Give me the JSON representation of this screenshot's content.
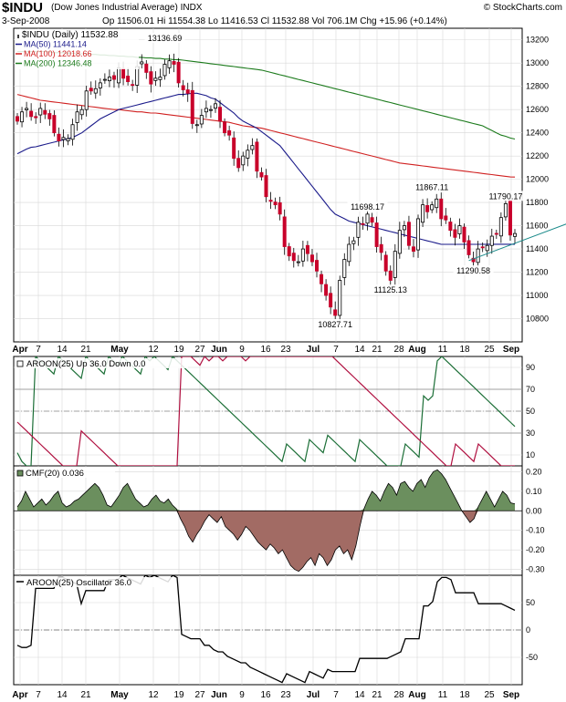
{
  "header": {
    "symbol": "$INDU",
    "name": "(Dow Jones Industrial Average)",
    "exchange": "INDX",
    "source": "© StockCharts.com",
    "date": "3-Sep-2008",
    "quote": "Op 11506.01  Hi 11554.38  Lo 11416.53  Cl 11532.88  Vol 706.1M  Chg +15.96 (+0.14%)"
  },
  "chart_data": [
    {
      "type": "candlestick",
      "legend": [
        {
          "label": "$INDU (Daily) 11532.88",
          "color": "#000000"
        },
        {
          "label": "MA(50) 11441.14",
          "color": "#1a1a8a"
        },
        {
          "label": "MA(100) 12018.66",
          "color": "#d02020"
        },
        {
          "label": "MA(200) 12346.48",
          "color": "#1b7a1b"
        }
      ],
      "x_tick_labels": [
        "Apr",
        "7",
        "14",
        "21",
        "May",
        "12",
        "19",
        "27",
        "Jun",
        "9",
        "16",
        "23",
        "Jul",
        "7",
        "14",
        "21",
        "28",
        "Aug",
        "11",
        "18",
        "25",
        "Sep"
      ],
      "y_tick_labels": [
        "10800",
        "11000",
        "11200",
        "11400",
        "11600",
        "11800",
        "12000",
        "12200",
        "12400",
        "12600",
        "12800",
        "13000",
        "13200"
      ],
      "ylim": [
        10600,
        13300
      ],
      "closes": [
        12500,
        12580,
        12610,
        12540,
        12530,
        12610,
        12560,
        12520,
        12400,
        12330,
        12360,
        12350,
        12470,
        12580,
        12600,
        12760,
        12760,
        12780,
        12830,
        12860,
        12880,
        12860,
        12960,
        12870,
        12840,
        12810,
        12970,
        13010,
        12920,
        12820,
        12870,
        12880,
        12990,
        13020,
        12990,
        12830,
        12770,
        12740,
        12480,
        12470,
        12550,
        12610,
        12600,
        12650,
        12500,
        12400,
        12380,
        12180,
        12100,
        12200,
        12250,
        12290,
        12070,
        12020,
        11850,
        11810,
        11780,
        11700,
        11420,
        11340,
        11300,
        11290,
        11400,
        11360,
        11290,
        11210,
        11100,
        11000,
        10900,
        10828,
        11130,
        11310,
        11440,
        11470,
        11630,
        11610,
        11700,
        11630,
        11420,
        11370,
        11210,
        11130,
        11380,
        11560,
        11600,
        11430,
        11380,
        11660,
        11780,
        11720,
        11780,
        11830,
        11660,
        11650,
        11560,
        11500,
        11600,
        11460,
        11350,
        11290,
        11400,
        11410,
        11430,
        11510,
        11530,
        11670,
        11790,
        11520,
        11533
      ],
      "ma50": [
        12220,
        12240,
        12260,
        12275,
        12280,
        12290,
        12300,
        12310,
        12320,
        12330,
        12340,
        12350,
        12360,
        12380,
        12400,
        12430,
        12460,
        12490,
        12520,
        12540,
        12560,
        12580,
        12600,
        12610,
        12620,
        12630,
        12640,
        12650,
        12660,
        12670,
        12680,
        12690,
        12700,
        12710,
        12720,
        12730,
        12730,
        12735,
        12740,
        12740,
        12730,
        12720,
        12700,
        12690,
        12660,
        12630,
        12600,
        12570,
        12530,
        12500,
        12480,
        12460,
        12440,
        12410,
        12380,
        12350,
        12320,
        12290,
        12240,
        12190,
        12140,
        12090,
        12040,
        11990,
        11940,
        11890,
        11840,
        11790,
        11740,
        11700,
        11680,
        11660,
        11640,
        11630,
        11620,
        11610,
        11600,
        11590,
        11580,
        11570,
        11560,
        11550,
        11540,
        11530,
        11520,
        11510,
        11500,
        11490,
        11480,
        11470,
        11460,
        11450,
        11440,
        11440,
        11440,
        11440,
        11440,
        11440,
        11440,
        11440,
        11440,
        11440,
        11441,
        11441,
        11441,
        11441,
        11441,
        11441,
        11441
      ],
      "ma100": [
        12730,
        12720,
        12710,
        12700,
        12690,
        12680,
        12675,
        12670,
        12665,
        12660,
        12655,
        12650,
        12645,
        12640,
        12635,
        12630,
        12625,
        12620,
        12615,
        12610,
        12605,
        12600,
        12600,
        12595,
        12590,
        12585,
        12580,
        12580,
        12575,
        12570,
        12570,
        12565,
        12560,
        12555,
        12550,
        12545,
        12540,
        12535,
        12530,
        12525,
        12520,
        12515,
        12510,
        12505,
        12500,
        12495,
        12490,
        12480,
        12470,
        12460,
        12455,
        12450,
        12445,
        12440,
        12430,
        12420,
        12410,
        12400,
        12390,
        12380,
        12370,
        12360,
        12350,
        12340,
        12330,
        12320,
        12310,
        12300,
        12290,
        12280,
        12270,
        12260,
        12250,
        12240,
        12230,
        12220,
        12210,
        12200,
        12190,
        12180,
        12170,
        12160,
        12150,
        12140,
        12135,
        12130,
        12125,
        12120,
        12115,
        12110,
        12105,
        12100,
        12095,
        12090,
        12085,
        12080,
        12075,
        12070,
        12065,
        12060,
        12055,
        12050,
        12045,
        12040,
        12035,
        12030,
        12025,
        12020,
        12019
      ],
      "ma200": [
        13100,
        13100,
        13100,
        13100,
        13100,
        13100,
        13100,
        13095,
        13090,
        13090,
        13090,
        13085,
        13085,
        13080,
        13080,
        13080,
        13075,
        13075,
        13070,
        13070,
        13065,
        13065,
        13060,
        13060,
        13055,
        13055,
        13050,
        13050,
        13045,
        13045,
        13040,
        13040,
        13035,
        13035,
        13030,
        13030,
        13025,
        13020,
        13015,
        13010,
        13005,
        13000,
        12995,
        12990,
        12985,
        12980,
        12975,
        12970,
        12965,
        12960,
        12955,
        12950,
        12945,
        12940,
        12930,
        12920,
        12910,
        12900,
        12890,
        12880,
        12870,
        12860,
        12850,
        12840,
        12830,
        12820,
        12810,
        12800,
        12790,
        12780,
        12770,
        12760,
        12750,
        12740,
        12730,
        12720,
        12710,
        12700,
        12690,
        12680,
        12670,
        12660,
        12650,
        12640,
        12630,
        12620,
        12610,
        12600,
        12590,
        12580,
        12570,
        12560,
        12550,
        12540,
        12530,
        12520,
        12510,
        12500,
        12490,
        12480,
        12470,
        12460,
        12440,
        12420,
        12400,
        12380,
        12370,
        12355,
        12346
      ],
      "annotations": [
        {
          "label": "13136.69",
          "x": 32,
          "y": 13150
        },
        {
          "label": "10827.71",
          "x": 69,
          "y": 10828
        },
        {
          "label": "11125.13",
          "x": 81,
          "y": 11125
        },
        {
          "label": "11698.17",
          "x": 76,
          "y": 11698
        },
        {
          "label": "11867.11",
          "x": 90,
          "y": 11867
        },
        {
          "label": "11290.58",
          "x": 99,
          "y": 11290
        },
        {
          "label": "11790.17",
          "x": 106,
          "y": 11790
        }
      ],
      "trendline": {
        "from": {
          "x": 98,
          "y": 11300
        },
        "to": {
          "x": 115,
          "y": 11690
        }
      }
    },
    {
      "type": "line",
      "title": "AROON(25) Up 36.0 Down 0.0",
      "y_tick_labels": [
        "10",
        "30",
        "50",
        "70",
        "90"
      ],
      "ylim": [
        0,
        100
      ],
      "reference_lines": [
        30,
        50,
        70
      ],
      "series": [
        {
          "name": "Up",
          "color": "#1b6e36",
          "values": [
            12,
            4,
            0,
            0,
            100,
            96,
            92,
            88,
            84,
            100,
            96,
            92,
            88,
            84,
            80,
            100,
            96,
            92,
            88,
            84,
            100,
            96,
            92,
            100,
            96,
            92,
            88,
            84,
            100,
            96,
            100,
            96,
            92,
            88,
            100,
            96,
            92,
            88,
            84,
            80,
            76,
            72,
            68,
            64,
            60,
            56,
            52,
            48,
            44,
            40,
            36,
            32,
            28,
            24,
            20,
            16,
            12,
            8,
            4,
            20,
            16,
            12,
            8,
            4,
            24,
            20,
            16,
            12,
            28,
            24,
            20,
            16,
            12,
            8,
            4,
            24,
            20,
            16,
            12,
            8,
            4,
            0,
            0,
            0,
            0,
            20,
            16,
            12,
            8,
            64,
            60,
            64,
            96,
            100,
            96,
            92,
            88,
            84,
            80,
            76,
            72,
            68,
            64,
            60,
            56,
            52,
            48,
            44,
            40,
            36
          ]
        },
        {
          "name": "Down",
          "color": "#b01040",
          "values": [
            40,
            36,
            32,
            28,
            24,
            20,
            16,
            12,
            8,
            4,
            0,
            0,
            0,
            0,
            32,
            28,
            24,
            20,
            16,
            12,
            8,
            4,
            0,
            0,
            0,
            0,
            0,
            0,
            0,
            0,
            0,
            0,
            0,
            0,
            0,
            0,
            100,
            100,
            100,
            96,
            92,
            100,
            96,
            100,
            100,
            96,
            100,
            100,
            100,
            100,
            96,
            100,
            100,
            100,
            100,
            100,
            100,
            100,
            100,
            100,
            100,
            100,
            100,
            100,
            100,
            100,
            100,
            100,
            100,
            100,
            96,
            92,
            88,
            84,
            80,
            76,
            72,
            68,
            64,
            60,
            56,
            52,
            48,
            44,
            40,
            36,
            32,
            28,
            24,
            20,
            16,
            12,
            8,
            4,
            0,
            0,
            20,
            16,
            12,
            8,
            4,
            20,
            16,
            12,
            8,
            4,
            0,
            0,
            0,
            0
          ]
        }
      ]
    },
    {
      "type": "area",
      "title": "CMF(20) 0.036",
      "y_tick_labels": [
        "-0.30",
        "-0.20",
        "-0.10",
        "0.00",
        "0.10",
        "0.20"
      ],
      "ylim": [
        -0.33,
        0.23
      ],
      "positive_color": "#6b8f5e",
      "negative_color": "#a26b64",
      "values": [
        0.02,
        0.05,
        0.1,
        0.06,
        0.02,
        0.04,
        0.06,
        0.03,
        0.05,
        0.08,
        0.1,
        0.04,
        0.02,
        0.03,
        0.05,
        0.06,
        0.08,
        0.1,
        0.12,
        0.14,
        0.12,
        0.08,
        0.03,
        0.02,
        0.05,
        0.08,
        0.12,
        0.14,
        0.1,
        0.06,
        0.04,
        0.02,
        0.03,
        0.06,
        0.08,
        0.05,
        0.04,
        0.06,
        0.03,
        0.01,
        -0.04,
        -0.08,
        -0.13,
        -0.16,
        -0.12,
        -0.09,
        -0.05,
        -0.02,
        -0.04,
        -0.06,
        -0.03,
        -0.08,
        -0.1,
        -0.12,
        -0.15,
        -0.12,
        -0.08,
        -0.1,
        -0.13,
        -0.16,
        -0.18,
        -0.2,
        -0.17,
        -0.19,
        -0.22,
        -0.2,
        -0.24,
        -0.28,
        -0.3,
        -0.31,
        -0.29,
        -0.26,
        -0.24,
        -0.28,
        -0.22,
        -0.24,
        -0.28,
        -0.25,
        -0.2,
        -0.18,
        -0.22,
        -0.2,
        -0.25,
        -0.18,
        -0.08,
        0.01,
        0.06,
        0.1,
        0.08,
        0.05,
        0.1,
        0.14,
        0.12,
        0.08,
        0.14,
        0.15,
        0.12,
        0.1,
        0.14,
        0.16,
        0.12,
        0.17,
        0.2,
        0.21,
        0.19,
        0.16,
        0.12,
        0.08,
        0.04,
        0.0,
        -0.03,
        -0.06,
        -0.04,
        0.02,
        0.06,
        0.1,
        0.06,
        0.02,
        0.06,
        0.1,
        0.08,
        0.04,
        0.036
      ]
    },
    {
      "type": "line",
      "title": "AROON(25) Oscillator 36.0",
      "y_tick_labels": [
        "-50",
        "0",
        "50"
      ],
      "ylim": [
        -100,
        100
      ],
      "reference_lines": [
        0
      ],
      "series": [
        {
          "name": "",
          "color": "#000000",
          "values": [
            -28,
            -32,
            -32,
            -28,
            76,
            76,
            76,
            76,
            76,
            96,
            96,
            92,
            88,
            84,
            48,
            72,
            72,
            72,
            72,
            72,
            92,
            92,
            92,
            100,
            96,
            92,
            88,
            84,
            100,
            96,
            100,
            96,
            92,
            88,
            100,
            96,
            -8,
            -12,
            -16,
            -16,
            -16,
            -28,
            -28,
            -36,
            -40,
            -40,
            -48,
            -52,
            -56,
            -60,
            -60,
            -68,
            -72,
            -76,
            -80,
            -84,
            -88,
            -92,
            -96,
            -80,
            -84,
            -88,
            -92,
            -96,
            -76,
            -80,
            -84,
            -88,
            -72,
            -76,
            -76,
            -76,
            -76,
            -76,
            -76,
            -52,
            -52,
            -52,
            -52,
            -52,
            -52,
            -52,
            -48,
            -44,
            -40,
            -16,
            -16,
            -16,
            -16,
            44,
            44,
            52,
            88,
            96,
            96,
            92,
            68,
            68,
            68,
            68,
            68,
            48,
            48,
            48,
            48,
            48,
            48,
            44,
            40,
            36
          ]
        }
      ]
    }
  ]
}
